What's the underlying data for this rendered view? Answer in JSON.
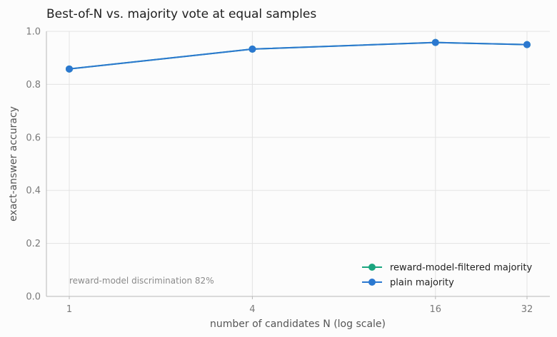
{
  "chart_data": {
    "type": "line",
    "title": "Best-of-N vs. majority vote at equal samples",
    "xlabel": "number of candidates N (log scale)",
    "ylabel": "exact-answer accuracy",
    "x_scale": "log2",
    "x": [
      1,
      4,
      16,
      32
    ],
    "x_tick_labels": [
      "1",
      "4",
      "16",
      "32"
    ],
    "ylim": [
      0.0,
      1.0
    ],
    "y_ticks": [
      "0.0",
      "0.2",
      "0.4",
      "0.6",
      "0.8",
      "1.0"
    ],
    "grid": true,
    "legend_position": "bottom-right",
    "series": [
      {
        "name": "reward-model-filtered majority",
        "color": "#1aa57f",
        "values": [
          0.858,
          0.933,
          0.958,
          0.95
        ]
      },
      {
        "name": "plain majority",
        "color": "#2b78d0",
        "values": [
          0.858,
          0.933,
          0.958,
          0.95
        ]
      }
    ],
    "annotation": "reward-model discrimination 82%"
  }
}
